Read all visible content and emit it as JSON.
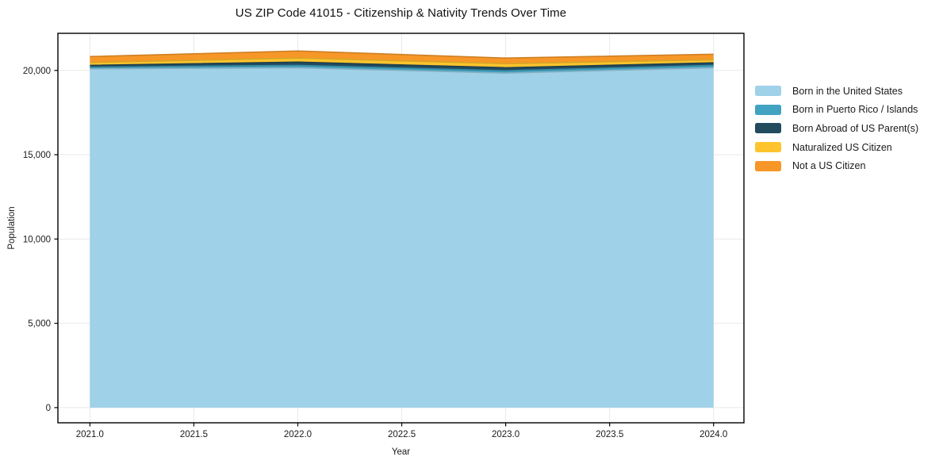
{
  "figure": {
    "background": "#ffffff"
  },
  "chart_data": {
    "type": "area",
    "stacked": true,
    "title": "US ZIP Code 41015 - Citizenship & Nativity Trends Over Time",
    "xlabel": "Year",
    "ylabel": "Population",
    "x": [
      2021,
      2022,
      2023,
      2024
    ],
    "series": [
      {
        "name": "Born in the United States",
        "color": "#9fd1e8",
        "values": [
          20090,
          20160,
          19840,
          20160
        ]
      },
      {
        "name": "Born in Puerto Rico / Islands",
        "color": "#41a3c1",
        "values": [
          100,
          140,
          140,
          140
        ]
      },
      {
        "name": "Born Abroad of US Parent(s)",
        "color": "#224b5e",
        "values": [
          110,
          190,
          180,
          150
        ]
      },
      {
        "name": "Naturalized US Citizen",
        "color": "#fdc42d",
        "values": [
          170,
          240,
          240,
          180
        ]
      },
      {
        "name": "Not a US Citizen",
        "color": "#f79728",
        "values": [
          350,
          420,
          330,
          330
        ]
      }
    ],
    "stack_totals": [
      20820,
      21150,
      20730,
      20960
    ],
    "xlim": [
      2020.846,
      2024.146
    ],
    "ylim": [
      -900,
      22200
    ],
    "x_ticks": {
      "values": [
        2021.0,
        2021.5,
        2022.0,
        2022.5,
        2023.0,
        2023.5,
        2024.0
      ],
      "labels": [
        "2021.0",
        "2021.5",
        "2022.0",
        "2022.5",
        "2023.0",
        "2023.5",
        "2024.0"
      ]
    },
    "y_ticks": {
      "values": [
        0,
        5000,
        10000,
        15000,
        20000
      ],
      "labels": [
        "0",
        "5,000",
        "10,000",
        "15,000",
        "20,000"
      ]
    },
    "grid": true,
    "grid_color": "#e9e9e9",
    "spine_color": "#000000",
    "tick_label_color": "#1a1a1a",
    "legend_position": "right-outside"
  }
}
